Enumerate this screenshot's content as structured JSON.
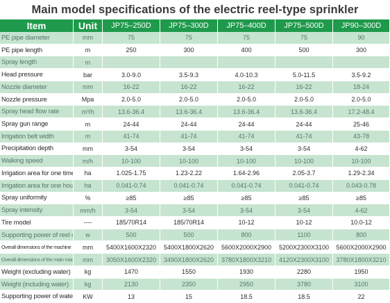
{
  "title": "Main model specifications of the electric reel-type sprinkler",
  "header": {
    "item": "Item",
    "unit": "Unit",
    "models": [
      "JP75–250D",
      "JP75–300D",
      "JP75–400D",
      "JP75–500D",
      "JP90–300D"
    ]
  },
  "rows": [
    {
      "item": "PE pipe diameter",
      "unit": "mm",
      "values": [
        "75",
        "75",
        "75",
        "75",
        "90"
      ]
    },
    {
      "item": "PE pipe length",
      "unit": "m",
      "values": [
        "250",
        "300",
        "400",
        "500",
        "300"
      ]
    },
    {
      "item": "Spray length",
      "unit": "m",
      "values": [
        "",
        "",
        "",
        "",
        ""
      ]
    },
    {
      "item": "Head pressure",
      "unit": "bar",
      "values": [
        "3.0-9.0",
        "3.5-9.3",
        "4.0-10.3",
        "5.0-11.5",
        "3.5-9.2"
      ]
    },
    {
      "item": "Nozzle diameter",
      "unit": "mm",
      "values": [
        "16-22",
        "16-22",
        "16-22",
        "16-22",
        "18-24"
      ]
    },
    {
      "item": "Nozzle pressure",
      "unit": "Mpa",
      "values": [
        "2.0-5.0",
        "2.0-5.0",
        "2.0-5.0",
        "2.0-5.0",
        "2.0-5.0"
      ]
    },
    {
      "item": "Spray head flow rate",
      "unit": "m³/h",
      "values": [
        "13.6-36.4",
        "13.6-36.4",
        "13.6-36.4",
        "13.6-36.4",
        "17.2-48.4"
      ]
    },
    {
      "item": "Spray gun range",
      "unit": "m",
      "values": [
        "24-44",
        "24-44",
        "24-44",
        "24-44",
        "25-46"
      ]
    },
    {
      "item": "Irrigation belt width",
      "unit": "m",
      "values": [
        "41-74",
        "41-74",
        "41-74",
        "41-74",
        "43-78"
      ]
    },
    {
      "item": "Precipitation depth",
      "unit": "mm",
      "values": [
        "3-54",
        "3-54",
        "3-54",
        "3-54",
        "4-62"
      ]
    },
    {
      "item": "Walking speed",
      "unit": "m/h",
      "values": [
        "10-100",
        "10-100",
        "10-100",
        "10-100",
        "10-100"
      ]
    },
    {
      "item": "Irrigation area for one time",
      "unit": "ha",
      "values": [
        "1.025-1.75",
        "1.23-2.22",
        "1.64-2.96",
        "2.05-3.7",
        "1.29-2.34"
      ]
    },
    {
      "item": "Irrigation area for one hour",
      "unit": "ha",
      "values": [
        "0.041-0.74",
        "0.041-0.74",
        "0.041-0.74",
        "0.041-0.74",
        "0.043-0.78"
      ]
    },
    {
      "item": "Spray uniformity",
      "unit": "%",
      "values": [
        "≥85",
        "≥85",
        "≥85",
        "≥85",
        "≥85"
      ]
    },
    {
      "item": "Spray intensity",
      "unit": "mm/h",
      "values": [
        "3-54",
        "3-54",
        "3-54",
        "3-54",
        "4-62"
      ]
    },
    {
      "item": "Tire model",
      "unit": "----",
      "values": [
        "185/70R14",
        "185/70R14",
        "10-12",
        "10-12",
        "10.0-12"
      ]
    },
    {
      "item": "Supporting power of reel drive",
      "unit": "w",
      "values": [
        "500",
        "500",
        "800",
        "1100",
        "800"
      ]
    },
    {
      "item": "Overall dimensions of the machine",
      "unit": "mm",
      "values": [
        "5400X1600X2320",
        "5400X1800X2620",
        "5600X2000X2900",
        "5200X2300X3100",
        "5600X2000X2900"
      ]
    },
    {
      "item": "Overall dimensions of the main machine",
      "unit": "mm",
      "values": [
        "3050X1600X2320",
        "3490X1800X2620",
        "3780X1800X3210",
        "4120X2300X3100",
        "3780X1800X3210"
      ]
    },
    {
      "item": "Weight (excluding water)",
      "unit": "kg",
      "values": [
        "1470",
        "1550",
        "1930",
        "2280",
        "1950"
      ]
    },
    {
      "item": "Weight (including water)",
      "unit": "kg",
      "values": [
        "2130",
        "2350",
        "2950",
        "3780",
        "3100"
      ]
    },
    {
      "item": "Supporting power of water pump",
      "unit": "KW",
      "values": [
        "13",
        "15",
        "18.5",
        "18.5",
        "22"
      ]
    }
  ],
  "colors": {
    "header_green": "#1f9a4c",
    "stripe_green": "#c6e4cf",
    "stripe_text": "#56786b",
    "text": "#2b2b2b"
  }
}
